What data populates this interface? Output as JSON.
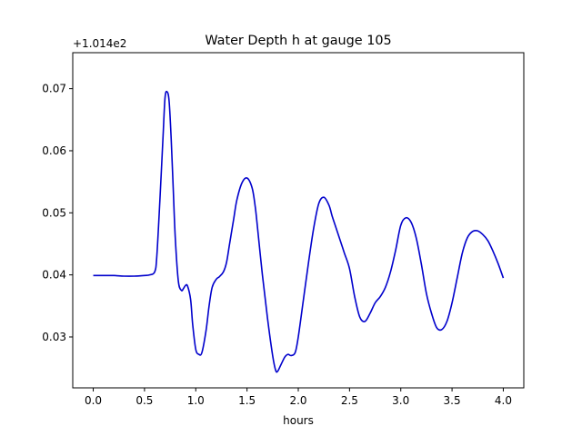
{
  "chart_data": {
    "type": "line",
    "title": "Water Depth h at gauge 105",
    "xlabel": "hours",
    "ylabel": "",
    "offset_label": "+1.014e2",
    "xlim": [
      -0.2,
      4.2
    ],
    "ylim": [
      0.0218,
      0.0758
    ],
    "x_ticks": [
      0.0,
      0.5,
      1.0,
      1.5,
      2.0,
      2.5,
      3.0,
      3.5,
      4.0
    ],
    "x_tick_labels": [
      "0.0",
      "0.5",
      "1.0",
      "1.5",
      "2.0",
      "2.5",
      "3.0",
      "3.5",
      "4.0"
    ],
    "y_ticks": [
      0.03,
      0.04,
      0.05,
      0.06,
      0.07
    ],
    "y_tick_labels": [
      "0.03",
      "0.04",
      "0.05",
      "0.06",
      "0.07"
    ],
    "grid": false,
    "series": [
      {
        "color": "#0000cc",
        "x": [
          0.0,
          0.1,
          0.2,
          0.3,
          0.4,
          0.5,
          0.55,
          0.6,
          0.62,
          0.65,
          0.68,
          0.7,
          0.72,
          0.74,
          0.76,
          0.78,
          0.8,
          0.83,
          0.86,
          0.88,
          0.9,
          0.92,
          0.95,
          0.97,
          1.0,
          1.03,
          1.06,
          1.1,
          1.13,
          1.16,
          1.2,
          1.23,
          1.27,
          1.3,
          1.33,
          1.37,
          1.4,
          1.45,
          1.5,
          1.55,
          1.58,
          1.6,
          1.65,
          1.7,
          1.75,
          1.78,
          1.8,
          1.83,
          1.87,
          1.9,
          1.93,
          1.97,
          2.0,
          2.05,
          2.1,
          2.15,
          2.2,
          2.25,
          2.3,
          2.33,
          2.36,
          2.4,
          2.45,
          2.5,
          2.55,
          2.6,
          2.65,
          2.7,
          2.75,
          2.8,
          2.85,
          2.9,
          2.95,
          3.0,
          3.05,
          3.1,
          3.15,
          3.2,
          3.25,
          3.3,
          3.35,
          3.4,
          3.45,
          3.5,
          3.55,
          3.6,
          3.65,
          3.7,
          3.75,
          3.8,
          3.85,
          3.9,
          3.95,
          4.0
        ],
        "values": [
          0.0399,
          0.0399,
          0.0399,
          0.0398,
          0.0398,
          0.0399,
          0.04,
          0.0405,
          0.043,
          0.052,
          0.062,
          0.0685,
          0.0695,
          0.068,
          0.062,
          0.054,
          0.046,
          0.039,
          0.0375,
          0.0378,
          0.0383,
          0.0382,
          0.036,
          0.032,
          0.028,
          0.0272,
          0.0275,
          0.031,
          0.035,
          0.038,
          0.0393,
          0.0397,
          0.0405,
          0.042,
          0.045,
          0.049,
          0.052,
          0.0548,
          0.0556,
          0.054,
          0.051,
          0.048,
          0.04,
          0.033,
          0.027,
          0.0246,
          0.0245,
          0.0255,
          0.0268,
          0.0272,
          0.027,
          0.0275,
          0.03,
          0.036,
          0.042,
          0.0475,
          0.0515,
          0.0525,
          0.0512,
          0.0495,
          0.048,
          0.046,
          0.0435,
          0.041,
          0.0365,
          0.0332,
          0.0325,
          0.0338,
          0.0355,
          0.0365,
          0.038,
          0.0405,
          0.044,
          0.048,
          0.0492,
          0.0485,
          0.046,
          0.0418,
          0.037,
          0.0338,
          0.0315,
          0.0312,
          0.0325,
          0.0355,
          0.0395,
          0.0435,
          0.046,
          0.047,
          0.0471,
          0.0465,
          0.0455,
          0.0438,
          0.0418,
          0.0395
        ]
      }
    ]
  }
}
